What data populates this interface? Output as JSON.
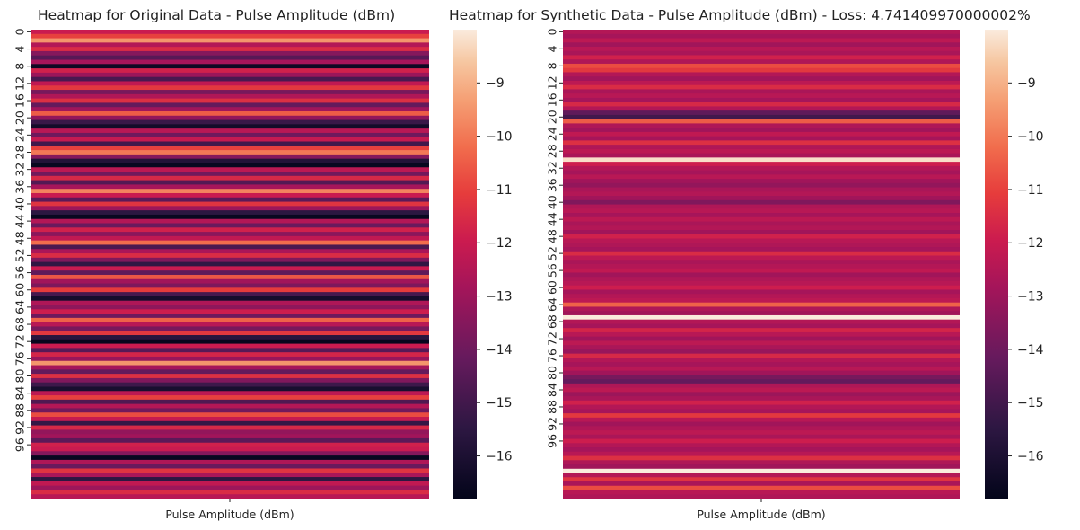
{
  "chart_data": [
    {
      "type": "heatmap",
      "title": "Heatmap for Original Data - Pulse Amplitude (dBm)",
      "xlabel": "Pulse Amplitude (dBm)",
      "ylabel": "",
      "x_categories": [
        ""
      ],
      "y_tick_labels": [
        "0",
        "4",
        "8",
        "12",
        "16",
        "20",
        "24",
        "28",
        "32",
        "36",
        "40",
        "44",
        "48",
        "52",
        "56",
        "60",
        "64",
        "68",
        "72",
        "76",
        "80",
        "84",
        "88",
        "92",
        "96"
      ],
      "value_range": [
        -16.8,
        -8.0
      ],
      "colorbar_ticks": [
        "−9",
        "−10",
        "−11",
        "−12",
        "−13",
        "−14",
        "−15",
        "−16"
      ],
      "colorbar_tick_values": [
        -9,
        -10,
        -11,
        -12,
        -13,
        -14,
        -15,
        -16
      ],
      "values": [
        -12.0,
        -11.0,
        -9.5,
        -12.5,
        -11.5,
        -13.5,
        -14.5,
        -12.8,
        -16.5,
        -11.8,
        -13.0,
        -14.8,
        -12.2,
        -11.2,
        -13.8,
        -12.6,
        -11.4,
        -14.2,
        -12.9,
        -10.5,
        -13.2,
        -15.2,
        -16.3,
        -12.4,
        -14.0,
        -12.1,
        -15.0,
        -11.0,
        -10.0,
        -13.5,
        -15.8,
        -16.6,
        -12.3,
        -13.9,
        -11.6,
        -14.6,
        -12.8,
        -9.8,
        -12.0,
        -14.4,
        -11.3,
        -13.0,
        -15.5,
        -16.6,
        -12.5,
        -14.1,
        -11.8,
        -13.4,
        -12.2,
        -10.2,
        -14.8,
        -12.7,
        -11.5,
        -13.6,
        -15.4,
        -12.0,
        -14.3,
        -10.6,
        -12.9,
        -13.7,
        -11.1,
        -14.9,
        -16.2,
        -12.6,
        -13.3,
        -11.9,
        -14.0,
        -10.4,
        -12.4,
        -13.8,
        -11.2,
        -15.6,
        -16.7,
        -12.0,
        -14.5,
        -11.7,
        -13.1,
        -9.5,
        -12.8,
        -14.2,
        -11.4,
        -13.6,
        -15.1,
        -16.1,
        -12.3,
        -11.0,
        -14.7,
        -12.5,
        -13.9,
        -10.8,
        -12.1,
        -15.3,
        -11.6,
        -13.2,
        -12.9,
        -14.4,
        -11.8,
        -12.0,
        -13.5,
        -16.6,
        -12.6,
        -14.1,
        -11.3,
        -12.7,
        -15.5,
        -12.2,
        -13.0,
        -11.5,
        -12.4
      ],
      "colorbar_placement": "right"
    },
    {
      "type": "heatmap",
      "title": "Heatmap for Synthetic Data - Pulse Amplitude (dBm) - Loss: 4.741409970000002%",
      "xlabel": "Pulse Amplitude (dBm)",
      "ylabel": "",
      "x_categories": [
        ""
      ],
      "y_tick_labels": [
        "0",
        "4",
        "8",
        "12",
        "16",
        "20",
        "24",
        "28",
        "32",
        "36",
        "40",
        "44",
        "48",
        "52",
        "56",
        "60",
        "64",
        "68",
        "72",
        "76",
        "80",
        "84",
        "88",
        "92",
        "96"
      ],
      "value_range": [
        -16.8,
        -8.0
      ],
      "colorbar_ticks": [
        "−9",
        "−10",
        "−11",
        "−12",
        "−13",
        "−14",
        "−15",
        "−16"
      ],
      "colorbar_tick_values": [
        -9,
        -10,
        -11,
        -12,
        -13,
        -14,
        -15,
        -16
      ],
      "values": [
        -12.5,
        -12.8,
        -12.3,
        -12.9,
        -12.4,
        -12.7,
        -11.8,
        -12.6,
        -10.8,
        -11.2,
        -12.5,
        -12.9,
        -12.3,
        -11.5,
        -12.7,
        -12.4,
        -12.8,
        -11.6,
        -12.5,
        -14.3,
        -15.0,
        -10.5,
        -12.6,
        -12.9,
        -12.2,
        -12.8,
        -11.4,
        -12.6,
        -12.3,
        -12.7,
        -8.2,
        -11.9,
        -12.5,
        -12.8,
        -12.4,
        -12.9,
        -13.2,
        -12.7,
        -12.5,
        -12.9,
        -13.6,
        -12.6,
        -12.4,
        -12.8,
        -12.3,
        -12.7,
        -12.5,
        -12.9,
        -11.8,
        -12.4,
        -12.6,
        -12.8,
        -11.5,
        -12.3,
        -12.7,
        -12.5,
        -12.2,
        -12.9,
        -12.6,
        -12.4,
        -11.9,
        -12.8,
        -12.5,
        -12.3,
        -10.4,
        -12.6,
        -12.9,
        -8.0,
        -12.5,
        -12.8,
        -11.7,
        -12.4,
        -12.9,
        -12.3,
        -12.7,
        -13.1,
        -11.6,
        -12.5,
        -12.8,
        -12.4,
        -12.9,
        -13.8,
        -14.2,
        -12.6,
        -12.3,
        -13.0,
        -12.7,
        -11.8,
        -12.5,
        -12.8,
        -11.2,
        -12.4,
        -12.9,
        -12.6,
        -12.3,
        -12.7,
        -11.9,
        -12.5,
        -12.8,
        -12.4,
        -11.4,
        -12.6,
        -12.9,
        -8.0,
        -12.5,
        -11.3,
        -12.7,
        -10.8,
        -12.4,
        -12.6
      ],
      "colorbar_placement": "right"
    }
  ]
}
